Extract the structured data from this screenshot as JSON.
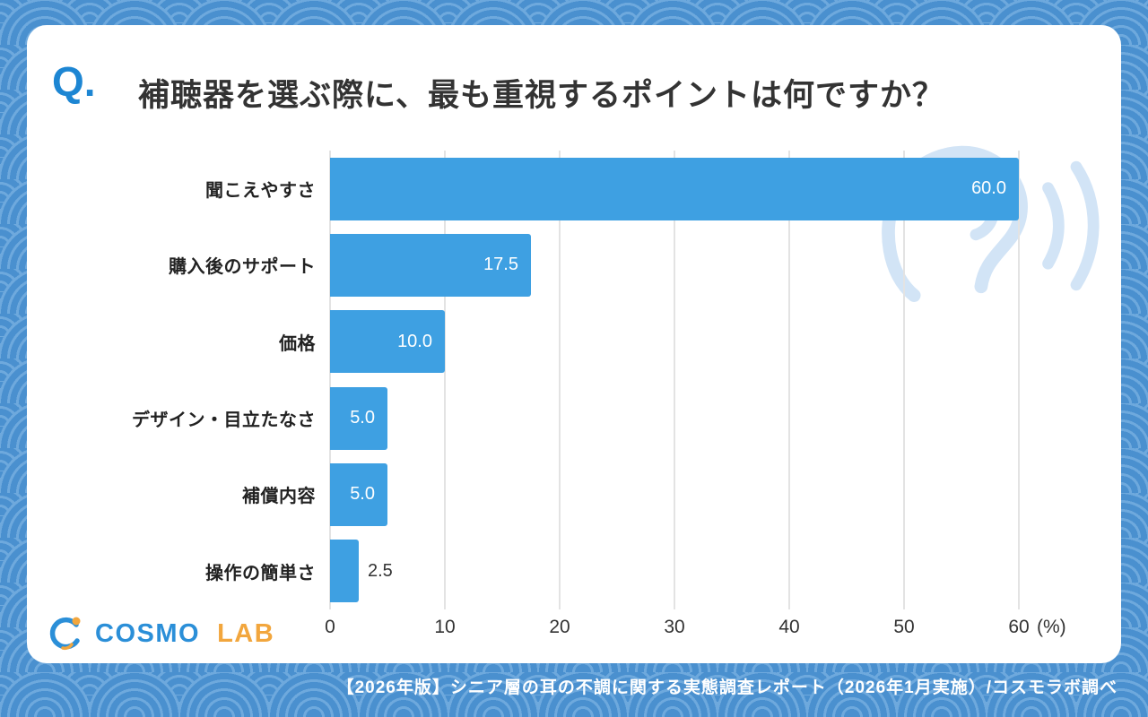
{
  "question": {
    "prefix": "Q.",
    "title": "補聴器を選ぶ際に、最も重視するポイントは何ですか？"
  },
  "chart_data": {
    "type": "bar",
    "orientation": "horizontal",
    "title": "補聴器を選ぶ際に、最も重視するポイントは何ですか？",
    "categories": [
      "聞こえやすさ",
      "購入後のサポート",
      "価格",
      "デザイン・目立たなさ",
      "補償内容",
      "操作の簡単さ"
    ],
    "values": [
      60.0,
      17.5,
      10.0,
      5.0,
      5.0,
      2.5
    ],
    "value_labels": [
      "60.0",
      "17.5",
      "10.0",
      "5.0",
      "5.0",
      "2.5"
    ],
    "x_ticks": [
      0,
      10,
      20,
      30,
      40,
      50,
      60
    ],
    "x_unit_label": "(%)",
    "xlim": [
      0,
      60
    ],
    "grid": true,
    "legend": false,
    "bar_color": "#3EA0E2",
    "inside_label_min": 5
  },
  "logo": {
    "cosmo": "COSMO",
    "lab": "LAB"
  },
  "watermark": {
    "icon": "ear-with-sound-waves"
  },
  "footer": {
    "text": "【2026年版】シニア層の耳の不調に関する実態調査レポート（2026年1月実施）/コスモラボ調べ"
  },
  "colors": {
    "bar": "#3EA0E2",
    "accent_blue": "#1D86D3",
    "logo_orange": "#F2A63D",
    "background_blue": "#4A90CF",
    "watermark_blue": "#D2E4F6"
  }
}
